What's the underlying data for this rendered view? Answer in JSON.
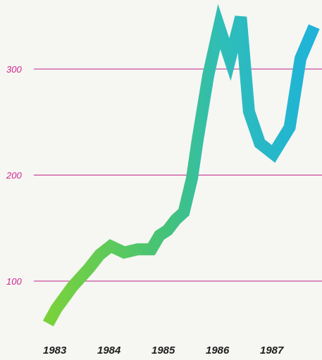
{
  "chart_data": {
    "type": "line",
    "title": "",
    "xlabel": "",
    "ylabel": "",
    "x": [
      1982.85,
      1983.0,
      1983.3,
      1983.6,
      1983.8,
      1984.0,
      1984.25,
      1984.5,
      1984.75,
      1984.9,
      1985.05,
      1985.2,
      1985.35,
      1985.5,
      1985.6,
      1985.8,
      1986.0,
      1986.2,
      1986.4,
      1986.55,
      1986.75,
      1987.0,
      1987.3,
      1987.5,
      1987.75
    ],
    "series": [
      {
        "values": [
          60,
          74,
          95,
          112,
          125,
          133,
          127,
          130,
          130,
          143,
          148,
          158,
          165,
          197,
          232,
          294,
          340,
          309,
          349,
          260,
          230,
          220,
          245,
          310,
          340
        ]
      }
    ],
    "yticks": [
      {
        "value": 100,
        "label": "100"
      },
      {
        "value": 200,
        "label": "200"
      },
      {
        "value": 300,
        "label": "300"
      }
    ],
    "xticks": [
      {
        "value": 1983.0,
        "label": "1983"
      },
      {
        "value": 1984.0,
        "label": "1984"
      },
      {
        "value": 1985.0,
        "label": "1985"
      },
      {
        "value": 1986.0,
        "label": "1986"
      },
      {
        "value": 1987.0,
        "label": "1987"
      }
    ],
    "grid": true,
    "legend": "none",
    "colors": {
      "grid": "#c0248a",
      "tick_label": "#d1268f",
      "line_start": "#7ad23a",
      "line_end": "#1fb3d8"
    }
  }
}
